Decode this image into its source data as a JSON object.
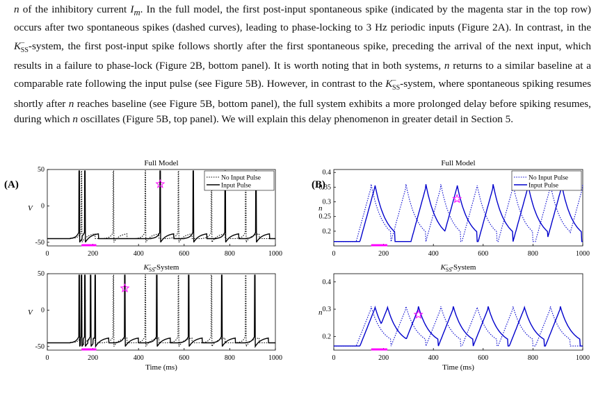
{
  "paragraph": {
    "s1a": "n",
    "s1b": " of the inhibitory current ",
    "s1c": "I",
    "s1d": "m",
    "s1e": ". In the full model, the first post-input spontaneous spike (indicated by the magenta star in the top row) occurs after two spontaneous spikes (dashed curves), leading to phase-locking to 3 Hz periodic inputs (Figure 2A). In contrast, in the ",
    "s2a": "K",
    "s2sup": "−",
    "s2sub": "SS",
    "s2b": "-system, the first post-input spike follows shortly after the first spontaneous spike, preceding the arrival of the next input, which results in a failure to phase-lock (Figure 2B, bottom panel). It is worth noting that in both systems, ",
    "s3a": "n",
    "s3b": " returns to a similar baseline at a comparable rate following the input pulse (see Figure 5B). However, in contrast to the ",
    "s4a": "K",
    "s4sup": "−",
    "s4sub": "SS",
    "s4b": "-system, where spontaneous spiking resumes shortly after ",
    "s5a": "n",
    "s5b": " reaches baseline (see Figure 5B, bottom panel), the full system exhibits a more prolonged delay before spiking resumes, during which ",
    "s6a": "n",
    "s6b": " oscillates (Figure 5B, top panel). We will explain this delay phenomenon in greater detail in Section 5."
  },
  "figure": {
    "panelA_label": "(A)",
    "panelB_label": "(B)",
    "xlabel": "Time (ms)",
    "legend_no_input": "No Input Pulse",
    "legend_input": "Input Pulse",
    "colors": {
      "magenta": "#ff00ff",
      "blue": "#0000cc",
      "black": "#000000"
    }
  },
  "chart_data": [
    {
      "type": "line",
      "title": "Full Model",
      "ylabel": "V",
      "xlim": [
        0,
        1000
      ],
      "ylim": [
        -55,
        50
      ],
      "xticks": [
        0,
        200,
        400,
        600,
        800,
        1000
      ],
      "yticks": [
        -50,
        0,
        50
      ],
      "legend": "top-right",
      "series": [
        {
          "name": "No Input Pulse",
          "style": "dotted",
          "spike_times": [
            150,
            290,
            430,
            575,
            720,
            870
          ]
        },
        {
          "name": "Input Pulse",
          "style": "solid",
          "spike_times": [
            140,
            165,
            495,
            640,
            780,
            915
          ]
        }
      ],
      "star": {
        "x": 495,
        "y": 30
      },
      "input_pulse": [
        150,
        215
      ]
    },
    {
      "type": "line",
      "title": "Full Model",
      "ylabel": "n",
      "xlim": [
        0,
        1000
      ],
      "ylim": [
        0.15,
        0.41
      ],
      "xticks": [
        0,
        200,
        400,
        600,
        800,
        1000
      ],
      "yticks": [
        0.2,
        0.25,
        0.3,
        0.35,
        0.4
      ],
      "legend": "top-right",
      "series": [
        {
          "name": "No Input Pulse",
          "style": "dotted",
          "peak_times": [
            150,
            290,
            430,
            575,
            720,
            870,
            1000
          ]
        },
        {
          "name": "Input Pulse",
          "style": "solid",
          "peak_times": [
            165,
            370,
            495,
            640,
            780,
            915
          ]
        }
      ],
      "star": {
        "x": 495,
        "y": 0.31
      },
      "input_pulse": [
        150,
        215
      ]
    },
    {
      "type": "line",
      "title": "K_SS^- -System",
      "ylabel": "V",
      "xlim": [
        0,
        1000
      ],
      "ylim": [
        -55,
        50
      ],
      "xticks": [
        0,
        200,
        400,
        600,
        800,
        1000
      ],
      "yticks": [
        -50,
        0,
        50
      ],
      "series": [
        {
          "name": "No Input Pulse",
          "style": "dotted",
          "spike_times": [
            150,
            290,
            430,
            575,
            720,
            870
          ]
        },
        {
          "name": "Input Pulse",
          "style": "solid",
          "spike_times": [
            140,
            150,
            165,
            190,
            210,
            340,
            480,
            620,
            765,
            910
          ]
        }
      ],
      "star": {
        "x": 340,
        "y": 30
      },
      "input_pulse": [
        150,
        215
      ]
    },
    {
      "type": "line",
      "title": "K_SS^- -System",
      "ylabel": "n",
      "xlim": [
        0,
        1000
      ],
      "ylim": [
        0.15,
        0.43
      ],
      "xticks": [
        0,
        200,
        400,
        600,
        800,
        1000
      ],
      "yticks": [
        0.2,
        0.3,
        0.4
      ],
      "series": [
        {
          "name": "No Input Pulse",
          "style": "dotted",
          "peak_times": [
            150,
            290,
            430,
            575,
            720,
            870
          ]
        },
        {
          "name": "Input Pulse",
          "style": "solid",
          "peak_times": [
            165,
            215,
            340,
            480,
            620,
            765,
            910
          ]
        }
      ],
      "star": {
        "x": 340,
        "y": 0.28
      },
      "input_pulse": [
        150,
        215
      ]
    }
  ]
}
